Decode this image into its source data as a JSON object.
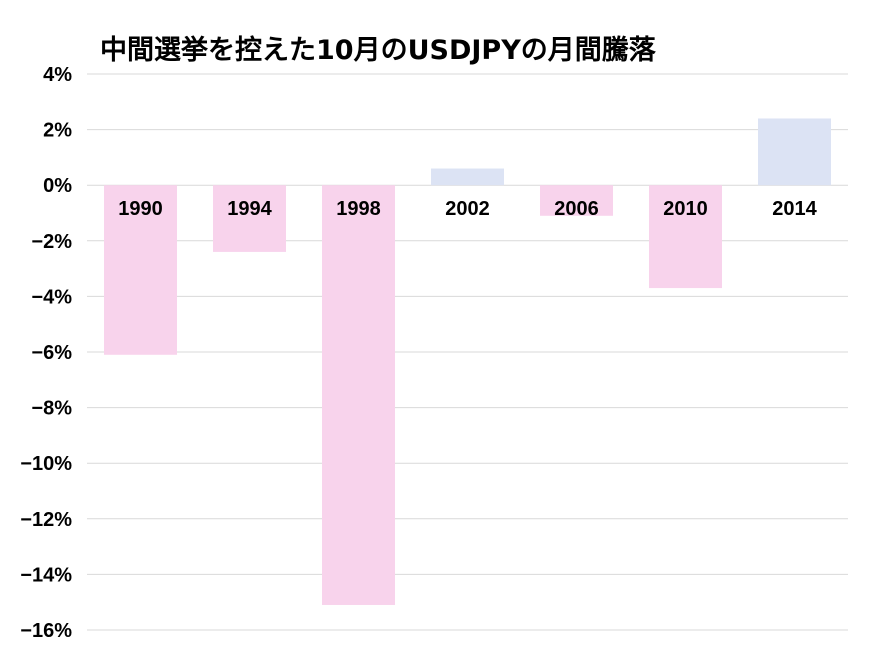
{
  "chart_data": {
    "type": "bar",
    "title": "中間選挙を控えた10月のUSDJPYの月間騰落",
    "categories": [
      "1990",
      "1994",
      "1998",
      "2002",
      "2006",
      "2010",
      "2014"
    ],
    "values": [
      -6.1,
      -2.4,
      -15.1,
      0.6,
      -1.1,
      -3.7,
      2.4
    ],
    "ylim": [
      -16,
      4
    ],
    "ytick_step": 2,
    "ytick_labels": [
      "4%",
      "2%",
      "0%",
      "−2%",
      "−4%",
      "−6%",
      "−8%",
      "−10%",
      "−12%",
      "−14%",
      "−16%"
    ],
    "grid": true,
    "xlabel": "",
    "ylabel": "",
    "colors": {
      "negative": "#f8d3ec",
      "positive": "#dce3f4",
      "grid": "#d9d9d9"
    }
  }
}
